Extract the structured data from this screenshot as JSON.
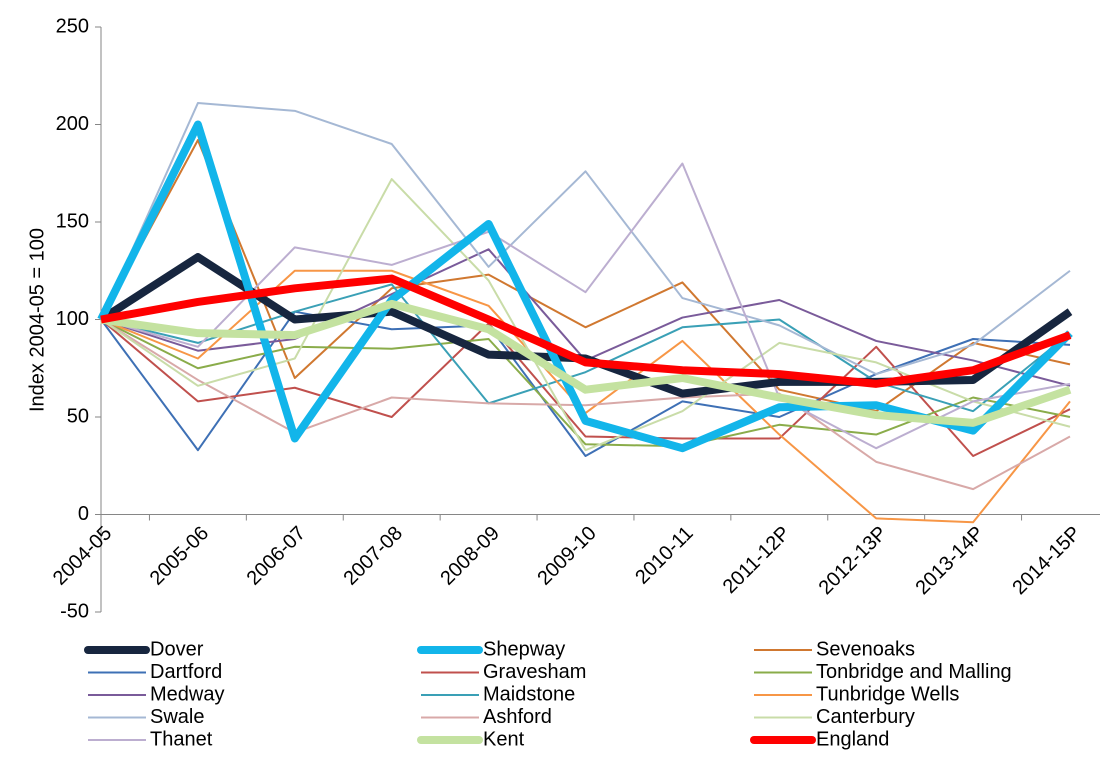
{
  "chart_data": {
    "type": "line",
    "y_label": "Index 2004-05 = 100",
    "categories": [
      "2004-05",
      "2005-06",
      "2006-07",
      "2007-08",
      "2008-09",
      "2009-10",
      "2010-11",
      "2011-12P",
      "2012-13P",
      "2013-14P",
      "2014-15P"
    ],
    "ylim": [
      -50,
      250
    ],
    "yticks": [
      -50,
      0,
      50,
      100,
      150,
      200,
      250
    ],
    "grid": false,
    "series": [
      {
        "name": "Dover",
        "color": "#17263f",
        "width": 8,
        "values": [
          100,
          132,
          100,
          104,
          82,
          80,
          62,
          68,
          68,
          69,
          104
        ]
      },
      {
        "name": "Shepway",
        "color": "#12b5ea",
        "width": 8,
        "values": [
          100,
          200,
          39,
          110,
          149,
          48,
          34,
          55,
          56,
          43,
          93
        ]
      },
      {
        "name": "Sevenoaks",
        "color": "#d07830",
        "width": 2,
        "values": [
          100,
          192,
          70,
          116,
          123,
          96,
          119,
          64,
          53,
          88,
          77
        ]
      },
      {
        "name": "Dartford",
        "color": "#3e70b5",
        "width": 2,
        "values": [
          100,
          33,
          104,
          95,
          97,
          30,
          58,
          50,
          72,
          90,
          87
        ]
      },
      {
        "name": "Gravesham",
        "color": "#c0504d",
        "width": 2,
        "values": [
          100,
          58,
          65,
          50,
          98,
          40,
          39,
          39,
          86,
          30,
          54
        ]
      },
      {
        "name": "Tonbridge and Malling",
        "color": "#8aac4a",
        "width": 2,
        "values": [
          100,
          75,
          86,
          85,
          90,
          36,
          35,
          46,
          41,
          60,
          50
        ]
      },
      {
        "name": "Medway",
        "color": "#7a5b9a",
        "width": 2,
        "values": [
          100,
          84,
          90,
          113,
          136,
          79,
          101,
          110,
          89,
          79,
          66
        ]
      },
      {
        "name": "Maidstone",
        "color": "#3aa0b6",
        "width": 2,
        "values": [
          100,
          88,
          104,
          118,
          57,
          73,
          96,
          100,
          68,
          53,
          93
        ]
      },
      {
        "name": "Tunbridge Wells",
        "color": "#f79646",
        "width": 2,
        "values": [
          100,
          80,
          125,
          125,
          107,
          52,
          89,
          41,
          -2,
          -4,
          58
        ]
      },
      {
        "name": "Swale",
        "color": "#a5b8d4",
        "width": 2,
        "values": [
          100,
          211,
          207,
          190,
          127,
          176,
          111,
          97,
          72,
          87,
          125
        ]
      },
      {
        "name": "Ashford",
        "color": "#d8a9a8",
        "width": 2,
        "values": [
          100,
          69,
          42,
          60,
          57,
          56,
          60,
          62,
          27,
          13,
          40
        ]
      },
      {
        "name": "Canterbury",
        "color": "#c9dca8",
        "width": 2,
        "values": [
          100,
          66,
          80,
          172,
          120,
          33,
          53,
          88,
          78,
          58,
          45
        ]
      },
      {
        "name": "Thanet",
        "color": "#bcaed0",
        "width": 2,
        "values": [
          100,
          86,
          137,
          128,
          145,
          114,
          180,
          60,
          34,
          58,
          67
        ]
      },
      {
        "name": "Kent",
        "color": "#c4e2a0",
        "width": 8,
        "values": [
          100,
          93,
          92,
          108,
          95,
          64,
          70,
          60,
          51,
          47,
          64
        ]
      },
      {
        "name": "England",
        "color": "#ff0000",
        "width": 8,
        "values": [
          100,
          109,
          116,
          121,
          100,
          78,
          74,
          72,
          67,
          74,
          92
        ]
      }
    ]
  }
}
